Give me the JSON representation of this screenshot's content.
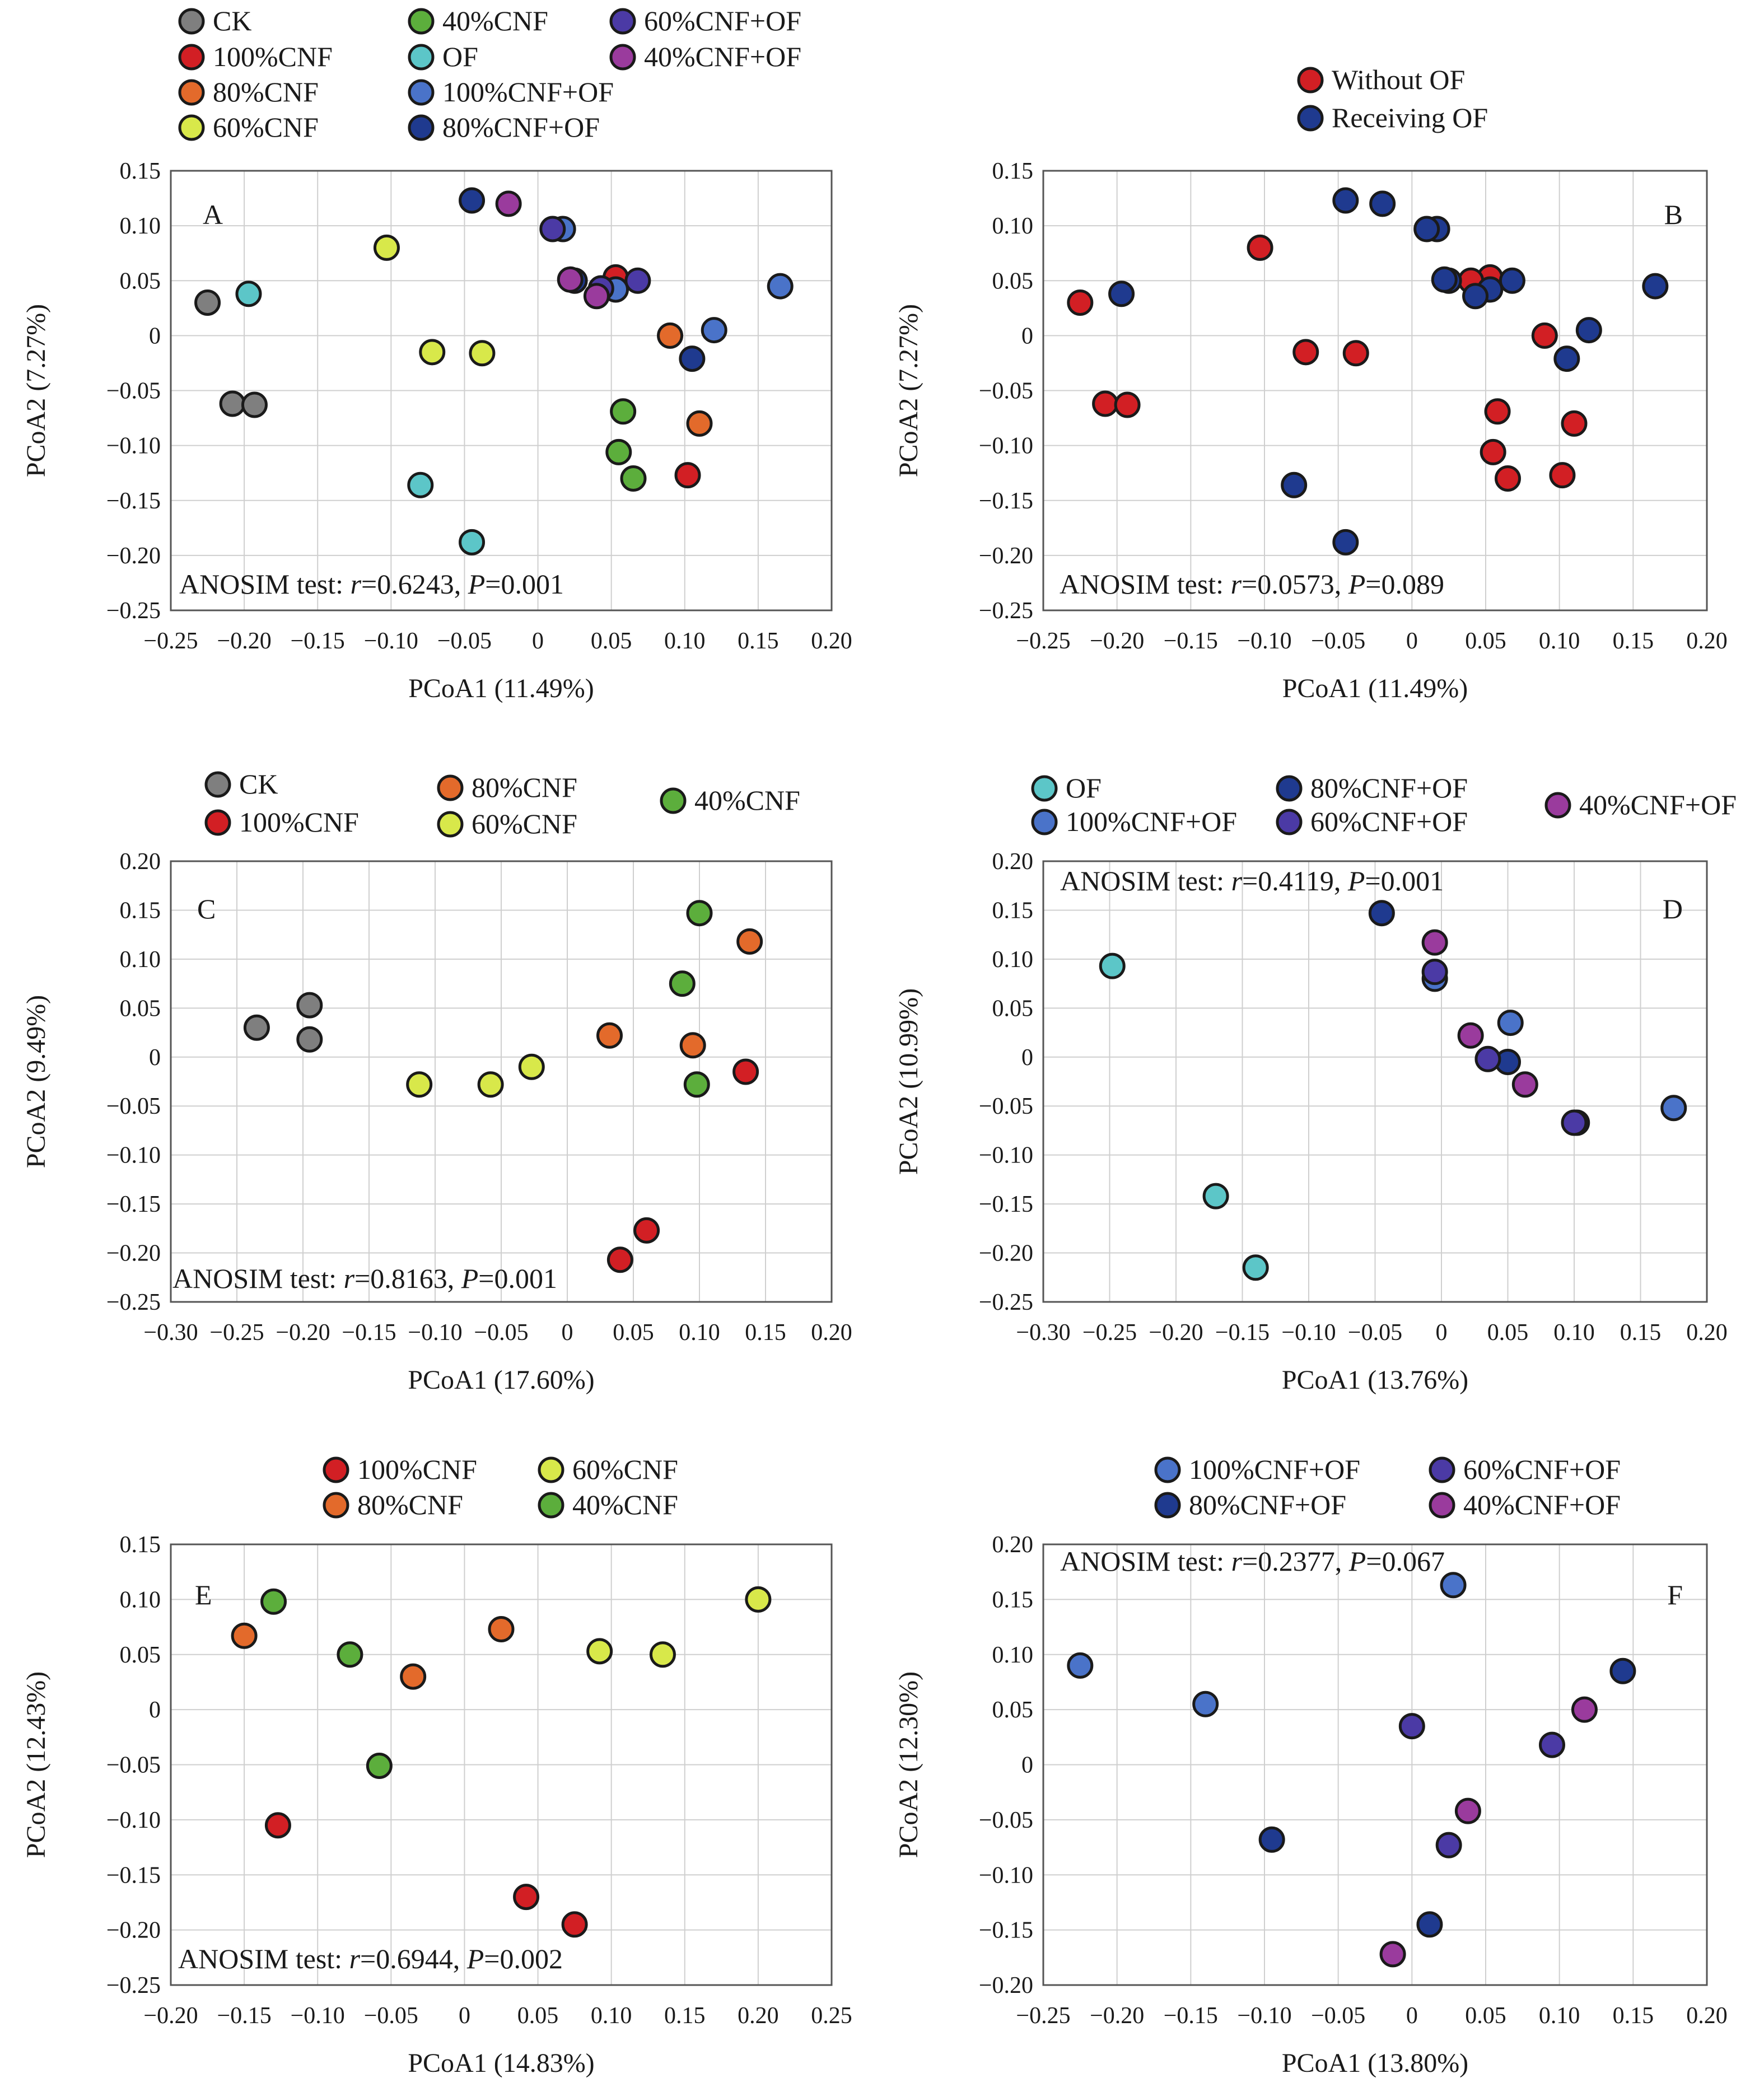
{
  "chart_data": [
    {
      "type": "scatter",
      "panel": "A",
      "xlabel": "PCoA1 (11.49%)",
      "ylabel": "PCoA2 (7.27%)",
      "xlim": [
        -0.25,
        0.2
      ],
      "ylim": [
        -0.25,
        0.15
      ],
      "xticks": [
        "−0.25",
        "−0.20",
        "−0.15",
        "−0.10",
        "−0.05",
        "0",
        "0.05",
        "0.10",
        "0.15",
        "0.20"
      ],
      "yticks": [
        "0.15",
        "0.10",
        "0.05",
        "0",
        "−0.05",
        "−0.10",
        "−0.15",
        "−0.20",
        "−0.25"
      ],
      "grid": true,
      "legend_placement": "top",
      "anosim": {
        "prefix": "ANOSIM test: ",
        "r_sym": "r",
        "r_val": "=0.6243, ",
        "p_sym": "P",
        "p_val": "=0.001"
      },
      "series": [
        {
          "name": "CK",
          "color": "#7f7f7f",
          "x": [
            -0.225,
            -0.208,
            -0.193
          ],
          "y": [
            0.03,
            -0.062,
            -0.063
          ]
        },
        {
          "name": "100%CNF",
          "color": "#d21f24",
          "x": [
            0.053,
            0.102
          ],
          "y": [
            0.053,
            -0.127
          ]
        },
        {
          "name": "80%CNF",
          "color": "#e36a2b",
          "x": [
            0.09,
            0.11
          ],
          "y": [
            0.0,
            -0.08
          ]
        },
        {
          "name": "60%CNF",
          "color": "#d8e84a",
          "x": [
            -0.103,
            -0.072,
            -0.038
          ],
          "y": [
            0.08,
            -0.015,
            -0.016
          ]
        },
        {
          "name": "40%CNF",
          "color": "#5cae3c",
          "x": [
            0.058,
            0.055,
            0.065
          ],
          "y": [
            -0.069,
            -0.106,
            -0.13
          ]
        },
        {
          "name": "OF",
          "color": "#5cc6c8",
          "x": [
            -0.197,
            -0.08,
            -0.045
          ],
          "y": [
            0.038,
            -0.136,
            -0.188
          ]
        },
        {
          "name": "100%CNF+OF",
          "color": "#4a73c9",
          "x": [
            0.165,
            0.12,
            0.017,
            0.053
          ],
          "y": [
            0.045,
            0.005,
            0.097,
            0.042
          ]
        },
        {
          "name": "80%CNF+OF",
          "color": "#1f3a8f",
          "x": [
            -0.045,
            0.105,
            0.025
          ],
          "y": [
            0.123,
            -0.021,
            0.05
          ]
        },
        {
          "name": "60%CNF+OF",
          "color": "#4b3aa5",
          "x": [
            0.01,
            0.068,
            0.043
          ],
          "y": [
            0.097,
            0.05,
            0.043
          ]
        },
        {
          "name": "40%CNF+OF",
          "color": "#9a3b9d",
          "x": [
            -0.02,
            0.04,
            0.022
          ],
          "y": [
            0.12,
            0.036,
            0.051
          ]
        }
      ]
    },
    {
      "type": "scatter",
      "panel": "B",
      "xlabel": "PCoA1 (11.49%)",
      "ylabel": "PCoA2 (7.27%)",
      "xlim": [
        -0.25,
        0.2
      ],
      "ylim": [
        -0.25,
        0.15
      ],
      "xticks": [
        "−0.25",
        "−0.20",
        "−0.15",
        "−0.10",
        "−0.05",
        "0",
        "0.05",
        "0.10",
        "0.15",
        "0.20"
      ],
      "yticks": [
        "0.15",
        "0.10",
        "0.05",
        "0",
        "−0.05",
        "−0.10",
        "−0.15",
        "−0.20",
        "−0.25"
      ],
      "grid": true,
      "legend_placement": "top",
      "anosim": {
        "prefix": "ANOSIM test: ",
        "r_sym": "r",
        "r_val": "=0.0573, ",
        "p_sym": "P",
        "p_val": "=0.089"
      },
      "series": [
        {
          "name": "Without OF",
          "color": "#d21f24",
          "x": [
            -0.225,
            -0.208,
            -0.193,
            0.053,
            0.102,
            0.09,
            0.11,
            -0.103,
            -0.072,
            -0.038,
            0.058,
            0.055,
            0.065,
            0.04
          ],
          "y": [
            0.03,
            -0.062,
            -0.063,
            0.053,
            -0.127,
            0.0,
            -0.08,
            0.08,
            -0.015,
            -0.016,
            -0.069,
            -0.106,
            -0.13,
            0.05
          ]
        },
        {
          "name": "Receiving OF",
          "color": "#1f3a8f",
          "x": [
            -0.197,
            -0.08,
            -0.045,
            0.165,
            0.12,
            0.017,
            0.053,
            -0.045,
            0.105,
            0.025,
            0.01,
            0.068,
            0.043,
            -0.02,
            0.022
          ],
          "y": [
            0.038,
            -0.136,
            -0.188,
            0.045,
            0.005,
            0.097,
            0.042,
            0.123,
            -0.021,
            0.05,
            0.097,
            0.05,
            0.036,
            0.12,
            0.051
          ]
        }
      ]
    },
    {
      "type": "scatter",
      "panel": "C",
      "xlabel": "PCoA1 (17.60%)",
      "ylabel": "PCoA2 (9.49%)",
      "xlim": [
        -0.3,
        0.2
      ],
      "ylim": [
        -0.25,
        0.2
      ],
      "xticks": [
        "−0.30",
        "−0.25",
        "−0.20",
        "−0.15",
        "−0.10",
        "−0.05",
        "0",
        "0.05",
        "0.10",
        "0.15",
        "0.20"
      ],
      "yticks": [
        "0.20",
        "0.15",
        "0.10",
        "0.05",
        "0",
        "−0.05",
        "−0.10",
        "−0.15",
        "−0.20",
        "−0.25"
      ],
      "grid": true,
      "legend_placement": "top",
      "anosim": {
        "prefix": "ANOSIM test: ",
        "r_sym": "r",
        "r_val": "=0.8163, ",
        "p_sym": "P",
        "p_val": "=0.001"
      },
      "series": [
        {
          "name": "CK",
          "color": "#7f7f7f",
          "x": [
            -0.235,
            -0.195,
            -0.195
          ],
          "y": [
            0.03,
            0.053,
            0.018
          ]
        },
        {
          "name": "100%CNF",
          "color": "#d21f24",
          "x": [
            0.135,
            0.06,
            0.04
          ],
          "y": [
            -0.015,
            -0.177,
            -0.207
          ]
        },
        {
          "name": "80%CNF",
          "color": "#e36a2b",
          "x": [
            0.138,
            0.032,
            0.095
          ],
          "y": [
            0.118,
            0.022,
            0.012
          ]
        },
        {
          "name": "60%CNF",
          "color": "#d8e84a",
          "x": [
            -0.112,
            -0.058,
            -0.027
          ],
          "y": [
            -0.028,
            -0.028,
            -0.01
          ]
        },
        {
          "name": "40%CNF",
          "color": "#5cae3c",
          "x": [
            0.1,
            0.087,
            0.098
          ],
          "y": [
            0.147,
            0.075,
            -0.028
          ]
        }
      ]
    },
    {
      "type": "scatter",
      "panel": "D",
      "xlabel": "PCoA1 (13.76%)",
      "ylabel": "PCoA2 (10.99%)",
      "xlim": [
        -0.3,
        0.2
      ],
      "ylim": [
        -0.25,
        0.2
      ],
      "xticks": [
        "−0.30",
        "−0.25",
        "−0.20",
        "−0.15",
        "−0.10",
        "−0.05",
        "0",
        "0.05",
        "0.10",
        "0.15",
        "0.20"
      ],
      "yticks": [
        "0.20",
        "0.15",
        "0.10",
        "0.05",
        "0",
        "−0.05",
        "−0.10",
        "−0.15",
        "−0.20",
        "−0.25"
      ],
      "grid": true,
      "legend_placement": "top",
      "anosim": {
        "prefix": "ANOSIM test: ",
        "r_sym": "r",
        "r_val": "=0.4119, ",
        "p_sym": "P",
        "p_val": "=0.001"
      },
      "series": [
        {
          "name": "OF",
          "color": "#5cc6c8",
          "x": [
            -0.248,
            -0.17,
            -0.14
          ],
          "y": [
            0.093,
            -0.142,
            -0.215
          ]
        },
        {
          "name": "100%CNF+OF",
          "color": "#4a73c9",
          "x": [
            0.175,
            -0.005,
            0.052
          ],
          "y": [
            -0.052,
            0.08,
            0.035
          ]
        },
        {
          "name": "80%CNF+OF",
          "color": "#1f3a8f",
          "x": [
            -0.045,
            0.05,
            0.102
          ],
          "y": [
            0.147,
            -0.005,
            -0.067
          ]
        },
        {
          "name": "60%CNF+OF",
          "color": "#4b3aa5",
          "x": [
            -0.005,
            0.035,
            0.1
          ],
          "y": [
            0.087,
            -0.002,
            -0.067
          ]
        },
        {
          "name": "40%CNF+OF",
          "color": "#9a3b9d",
          "x": [
            -0.005,
            0.022,
            0.063
          ],
          "y": [
            0.117,
            0.022,
            -0.028
          ]
        }
      ]
    },
    {
      "type": "scatter",
      "panel": "E",
      "xlabel": "PCoA1 (14.83%)",
      "ylabel": "PCoA2 (12.43%)",
      "xlim": [
        -0.2,
        0.25
      ],
      "ylim": [
        -0.25,
        0.15
      ],
      "xticks": [
        "−0.20",
        "−0.15",
        "−0.10",
        "−0.05",
        "0",
        "0.05",
        "0.10",
        "0.15",
        "0.20",
        "0.25"
      ],
      "yticks": [
        "0.15",
        "0.10",
        "0.05",
        "0",
        "−0.05",
        "−0.10",
        "−0.15",
        "−0.20",
        "−0.25"
      ],
      "grid": true,
      "legend_placement": "top",
      "anosim": {
        "prefix": "ANOSIM test: ",
        "r_sym": "r",
        "r_val": "=0.6944, ",
        "p_sym": "P",
        "p_val": "=0.002"
      },
      "series": [
        {
          "name": "100%CNF",
          "color": "#d21f24",
          "x": [
            -0.127,
            0.042,
            0.075
          ],
          "y": [
            -0.105,
            -0.17,
            -0.195
          ]
        },
        {
          "name": "80%CNF",
          "color": "#e36a2b",
          "x": [
            -0.15,
            0.025,
            -0.035
          ],
          "y": [
            0.067,
            0.073,
            0.03
          ]
        },
        {
          "name": "60%CNF",
          "color": "#d8e84a",
          "x": [
            0.2,
            0.092,
            0.135
          ],
          "y": [
            0.1,
            0.053,
            0.05
          ]
        },
        {
          "name": "40%CNF",
          "color": "#5cae3c",
          "x": [
            -0.13,
            -0.078,
            -0.058
          ],
          "y": [
            0.098,
            0.05,
            -0.051
          ]
        }
      ]
    },
    {
      "type": "scatter",
      "panel": "F",
      "xlabel": "PCoA1 (13.80%)",
      "ylabel": "PCoA2 (12.30%)",
      "xlim": [
        -0.25,
        0.2
      ],
      "ylim": [
        -0.2,
        0.2
      ],
      "xticks": [
        "−0.25",
        "−0.20",
        "−0.15",
        "−0.10",
        "−0.05",
        "0",
        "0.05",
        "0.10",
        "0.15",
        "0.20"
      ],
      "yticks": [
        "0.20",
        "0.15",
        "0.10",
        "0.05",
        "0",
        "−0.05",
        "−0.10",
        "−0.15",
        "−0.20"
      ],
      "grid": true,
      "legend_placement": "top",
      "anosim": {
        "prefix": "ANOSIM test: ",
        "r_sym": "r",
        "r_val": "=0.2377, ",
        "p_sym": "P",
        "p_val": "=0.067"
      },
      "series": [
        {
          "name": "100%CNF+OF",
          "color": "#4a73c9",
          "x": [
            0.028,
            -0.225,
            -0.14
          ],
          "y": [
            0.163,
            0.09,
            0.055
          ]
        },
        {
          "name": "80%CNF+OF",
          "color": "#1f3a8f",
          "x": [
            0.143,
            -0.095,
            0.012
          ],
          "y": [
            0.085,
            -0.068,
            -0.145
          ]
        },
        {
          "name": "60%CNF+OF",
          "color": "#4b3aa5",
          "x": [
            0.0,
            0.095,
            0.025
          ],
          "y": [
            0.035,
            0.018,
            -0.073
          ]
        },
        {
          "name": "40%CNF+OF",
          "color": "#9a3b9d",
          "x": [
            0.117,
            0.038,
            -0.013
          ],
          "y": [
            0.05,
            -0.042,
            -0.172
          ]
        }
      ]
    }
  ]
}
